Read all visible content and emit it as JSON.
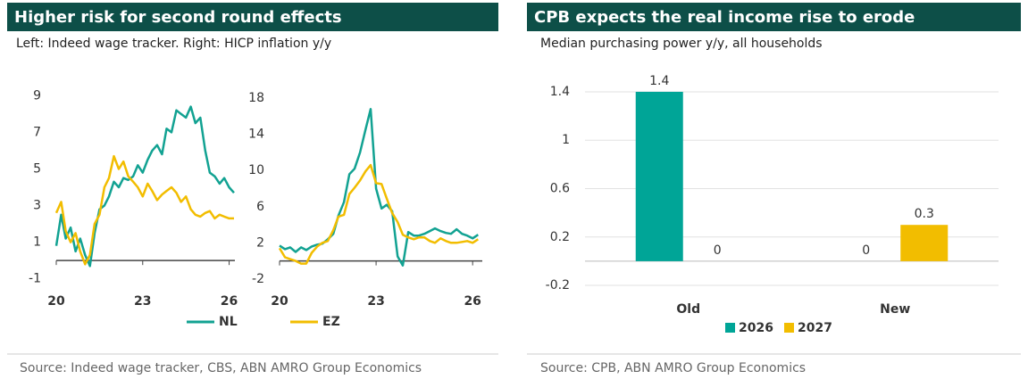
{
  "chart_data": [
    {
      "type": "line",
      "title": "Higher risk for second round effects",
      "subtitle": "Left: Indeed wage tracker. Right: HICP inflation y/y",
      "source": "Source: Indeed wage tracker, CBS, ABN AMRO Group Economics",
      "x": [
        20,
        20.17,
        20.33,
        20.5,
        20.67,
        20.83,
        21,
        21.17,
        21.33,
        21.5,
        21.67,
        21.83,
        22,
        22.17,
        22.33,
        22.5,
        22.67,
        22.83,
        23,
        23.17,
        23.33,
        23.5,
        23.67,
        23.83,
        24,
        24.17,
        24.33,
        24.5,
        24.67,
        24.83,
        25,
        25.17,
        25.33,
        25.5,
        25.67,
        25.83,
        26,
        26.17
      ],
      "series": [
        {
          "name": "NL",
          "color": "#12a292",
          "values": [
            0.8,
            2.5,
            1.2,
            1.8,
            0.5,
            1.2,
            0.3,
            -0.3,
            1.5,
            2.8,
            3.0,
            3.5,
            4.3,
            4.0,
            4.5,
            4.4,
            4.6,
            5.2,
            4.8,
            5.5,
            6.0,
            6.3,
            5.8,
            7.2,
            7.0,
            8.2,
            8.0,
            7.8,
            8.4,
            7.5,
            7.8,
            6.0,
            4.8,
            4.6,
            4.2,
            4.5,
            4.0,
            3.7
          ]
        },
        {
          "name": "EZ",
          "color": "#f2bd00",
          "values": [
            2.6,
            3.2,
            1.6,
            1.0,
            1.5,
            0.5,
            -0.2,
            0.3,
            2.0,
            2.5,
            4.0,
            4.5,
            5.7,
            5.0,
            5.4,
            4.6,
            4.3,
            4.0,
            3.5,
            4.2,
            3.8,
            3.3,
            3.6,
            3.8,
            4.0,
            3.7,
            3.2,
            3.5,
            2.8,
            2.5,
            2.4,
            2.6,
            2.7,
            2.3,
            2.5,
            2.4,
            2.3,
            2.3
          ]
        }
      ],
      "xlim": [
        20,
        26.2
      ],
      "xticks": [
        20,
        23,
        26
      ],
      "ylim": [
        -1.5,
        9.5
      ],
      "yticks": [
        -1,
        1,
        3,
        5,
        7,
        9
      ],
      "grid": false
    },
    {
      "type": "line",
      "x": [
        20,
        20.17,
        20.33,
        20.5,
        20.67,
        20.83,
        21,
        21.17,
        21.33,
        21.5,
        21.67,
        21.83,
        22,
        22.17,
        22.33,
        22.5,
        22.67,
        22.83,
        23,
        23.17,
        23.33,
        23.5,
        23.67,
        23.83,
        24,
        24.17,
        24.33,
        24.5,
        24.67,
        24.83,
        25,
        25.17,
        25.33,
        25.5,
        25.67,
        25.83,
        26,
        26.17
      ],
      "series": [
        {
          "color": "#12a292",
          "values": [
            1.7,
            1.3,
            1.5,
            1.0,
            1.5,
            1.2,
            1.6,
            1.8,
            1.9,
            2.4,
            3.0,
            5.0,
            6.5,
            9.6,
            10.2,
            12.0,
            14.5,
            16.8,
            8.0,
            5.8,
            6.2,
            5.5,
            0.5,
            -0.5,
            3.2,
            2.8,
            2.8,
            3.0,
            3.3,
            3.6,
            3.3,
            3.1,
            3.0,
            3.5,
            3.0,
            2.8,
            2.5,
            2.9
          ]
        },
        {
          "color": "#f2bd00",
          "values": [
            1.4,
            0.4,
            0.2,
            0.0,
            -0.3,
            -0.3,
            0.9,
            1.6,
            2.0,
            2.2,
            3.4,
            4.9,
            5.1,
            7.4,
            8.1,
            8.9,
            9.9,
            10.6,
            8.6,
            8.5,
            6.9,
            5.3,
            4.3,
            2.9,
            2.6,
            2.4,
            2.6,
            2.6,
            2.2,
            2.0,
            2.5,
            2.2,
            2.0,
            2.0,
            2.1,
            2.2,
            2.0,
            2.4
          ]
        }
      ],
      "xlim": [
        20,
        26.3
      ],
      "xticks": [
        20,
        23,
        26
      ],
      "ylim": [
        -3,
        19
      ],
      "yticks": [
        -2,
        2,
        6,
        10,
        14,
        18
      ],
      "grid": false
    },
    {
      "type": "bar",
      "title": "CPB expects the real income rise to erode",
      "subtitle": "Median purchasing power y/y, all households",
      "source": "Source: CPB, ABN AMRO Group Economics",
      "categories": [
        "Old",
        "New"
      ],
      "series": [
        {
          "name": "2026",
          "color": "#00a597",
          "values": [
            1.4,
            0
          ]
        },
        {
          "name": "2027",
          "color": "#f2bd00",
          "values": [
            0,
            0.3
          ]
        }
      ],
      "ylim": [
        -0.3,
        1.5
      ],
      "yticks": [
        -0.2,
        0.2,
        0.6,
        1,
        1.4
      ],
      "grid": true
    }
  ]
}
